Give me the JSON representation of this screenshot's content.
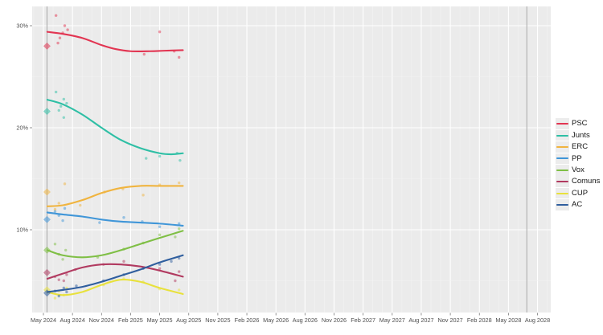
{
  "figure": {
    "background": "#ffffff",
    "panel_background": "#ebebeb",
    "major_grid_color": "#ffffff",
    "minor_grid_color": "#f3f3f3",
    "marker_line_color": "#a6a6a6",
    "axis_text_color": "#4d4d4d"
  },
  "chart_data": {
    "type": "scatter+line",
    "title": "",
    "xlabel": "",
    "ylabel": "",
    "x_unit": "months since May 2024",
    "x_tick_step_months": 3,
    "x_tick_labels": [
      "May 2024",
      "Aug 2024",
      "Nov 2024",
      "Feb 2025",
      "May 2025",
      "Aug 2025",
      "Nov 2025",
      "Feb 2026",
      "May 2026",
      "Aug 2026",
      "Nov 2026",
      "Feb 2027",
      "May 2027",
      "Aug 2027",
      "Nov 2027",
      "Feb 2028",
      "May 2028",
      "Aug 2028"
    ],
    "y_ticks": [
      {
        "label": "30%",
        "value": 30
      },
      {
        "label": "20%",
        "value": 20
      },
      {
        "label": "10%",
        "value": 10
      }
    ],
    "y_minor_ticks": [
      25,
      15,
      5
    ],
    "ylim": [
      1.9,
      31.9
    ],
    "xlim_months": [
      -1.2,
      52.4
    ],
    "election_line_month": 0.37,
    "term_end_line_month": 49.9,
    "legend_position": "right",
    "series": [
      {
        "name": "PSC",
        "color": "#e23552",
        "result": 28.0,
        "trend": [
          [
            0.4,
            29.4
          ],
          [
            2,
            29.2
          ],
          [
            4,
            28.8
          ],
          [
            6,
            28.1
          ],
          [
            7.5,
            27.7
          ],
          [
            9,
            27.5
          ],
          [
            11,
            27.5
          ],
          [
            12.5,
            27.55
          ],
          [
            14.4,
            27.6
          ]
        ],
        "polls": [
          [
            1.3,
            31.0
          ],
          [
            1.5,
            28.3
          ],
          [
            1.7,
            28.8
          ],
          [
            2.0,
            29.3
          ],
          [
            2.2,
            30.0
          ],
          [
            2.5,
            29.6
          ],
          [
            10.4,
            27.2
          ],
          [
            12.0,
            29.4
          ],
          [
            13.5,
            27.5
          ],
          [
            14.0,
            26.9
          ]
        ]
      },
      {
        "name": "Junts",
        "color": "#2ebfa5",
        "result": 21.6,
        "trend": [
          [
            0.4,
            22.75
          ],
          [
            2,
            22.3
          ],
          [
            4,
            21.3
          ],
          [
            6,
            20.0
          ],
          [
            8,
            18.8
          ],
          [
            10,
            18.0
          ],
          [
            12,
            17.5
          ],
          [
            13.2,
            17.4
          ],
          [
            14.4,
            17.5
          ]
        ],
        "polls": [
          [
            1.3,
            23.5
          ],
          [
            1.6,
            21.7
          ],
          [
            1.8,
            22.1
          ],
          [
            2.1,
            22.8
          ],
          [
            2.1,
            21.0
          ],
          [
            2.4,
            22.4
          ],
          [
            10.6,
            17.0
          ],
          [
            12.0,
            17.2
          ],
          [
            13.8,
            17.5
          ],
          [
            14.1,
            16.8
          ]
        ]
      },
      {
        "name": "ERC",
        "color": "#f0b43f",
        "result": 13.7,
        "trend": [
          [
            0.4,
            12.3
          ],
          [
            2,
            12.4
          ],
          [
            4,
            12.9
          ],
          [
            6,
            13.6
          ],
          [
            8,
            14.1
          ],
          [
            10,
            14.3
          ],
          [
            12,
            14.3
          ],
          [
            14.4,
            14.3
          ]
        ],
        "polls": [
          [
            1.2,
            12.0
          ],
          [
            1.6,
            12.6
          ],
          [
            2.2,
            14.5
          ],
          [
            3.8,
            12.4
          ],
          [
            6.3,
            13.7
          ],
          [
            8.2,
            14.0
          ],
          [
            10.3,
            13.4
          ],
          [
            12.0,
            14.4
          ],
          [
            14.0,
            14.6
          ]
        ]
      },
      {
        "name": "PP",
        "color": "#4096d8",
        "result": 11.0,
        "trend": [
          [
            0.4,
            11.7
          ],
          [
            2,
            11.5
          ],
          [
            4,
            11.3
          ],
          [
            6,
            11.0
          ],
          [
            8,
            10.8
          ],
          [
            10,
            10.7
          ],
          [
            12,
            10.6
          ],
          [
            14.4,
            10.4
          ]
        ],
        "polls": [
          [
            1.2,
            11.8
          ],
          [
            1.6,
            11.4
          ],
          [
            2.0,
            10.9
          ],
          [
            2.2,
            12.1
          ],
          [
            5.8,
            10.7
          ],
          [
            8.3,
            11.2
          ],
          [
            10.2,
            10.8
          ],
          [
            12.0,
            10.3
          ],
          [
            14.0,
            10.6
          ]
        ]
      },
      {
        "name": "Vox",
        "color": "#7fbf45",
        "result": 8.0,
        "trend": [
          [
            0.4,
            8.0
          ],
          [
            2,
            7.5
          ],
          [
            4,
            7.3
          ],
          [
            6,
            7.5
          ],
          [
            8,
            8.0
          ],
          [
            10,
            8.6
          ],
          [
            12,
            9.2
          ],
          [
            14.4,
            9.9
          ]
        ],
        "polls": [
          [
            1.2,
            8.6
          ],
          [
            1.6,
            7.6
          ],
          [
            2.0,
            7.1
          ],
          [
            2.3,
            8.0
          ],
          [
            5.6,
            7.3
          ],
          [
            8.3,
            8.1
          ],
          [
            10.3,
            8.7
          ],
          [
            12.0,
            9.5
          ],
          [
            13.6,
            9.3
          ],
          [
            14.0,
            10.1
          ]
        ]
      },
      {
        "name": "Comuns",
        "color": "#b13a60",
        "result": 5.8,
        "trend": [
          [
            0.4,
            5.2
          ],
          [
            2,
            5.7
          ],
          [
            4,
            6.3
          ],
          [
            6,
            6.6
          ],
          [
            8,
            6.6
          ],
          [
            10,
            6.4
          ],
          [
            12,
            6.0
          ],
          [
            14.4,
            5.4
          ]
        ],
        "polls": [
          [
            1.2,
            5.4
          ],
          [
            1.6,
            5.1
          ],
          [
            2.1,
            5.0
          ],
          [
            2.4,
            5.6
          ],
          [
            3.3,
            6.1
          ],
          [
            6.2,
            6.6
          ],
          [
            8.3,
            6.9
          ],
          [
            12.0,
            6.2
          ],
          [
            13.6,
            5.0
          ],
          [
            14.0,
            5.9
          ]
        ]
      },
      {
        "name": "CUP",
        "color": "#e8e13c",
        "result": 4.1,
        "trend": [
          [
            0.4,
            3.9
          ],
          [
            2,
            3.6
          ],
          [
            4,
            3.9
          ],
          [
            6,
            4.6
          ],
          [
            8,
            5.1
          ],
          [
            10,
            4.9
          ],
          [
            12,
            4.3
          ],
          [
            14.4,
            3.7
          ]
        ],
        "polls": [
          [
            1.2,
            3.3
          ],
          [
            1.6,
            4.0
          ],
          [
            2.1,
            3.6
          ],
          [
            2.4,
            4.3
          ],
          [
            6.2,
            4.6
          ],
          [
            8.3,
            5.2
          ],
          [
            10.3,
            4.9
          ],
          [
            12.0,
            4.2
          ],
          [
            14.0,
            4.1
          ]
        ]
      },
      {
        "name": "AC",
        "color": "#2f5e9e",
        "result": 3.8,
        "trend": [
          [
            0.4,
            3.9
          ],
          [
            2,
            4.1
          ],
          [
            4,
            4.4
          ],
          [
            6,
            4.9
          ],
          [
            8,
            5.5
          ],
          [
            10,
            6.1
          ],
          [
            12,
            6.8
          ],
          [
            14.4,
            7.5
          ]
        ],
        "polls": [
          [
            1.2,
            4.0
          ],
          [
            1.6,
            3.5
          ],
          [
            2.1,
            4.3
          ],
          [
            2.4,
            3.9
          ],
          [
            3.4,
            4.5
          ],
          [
            6.2,
            5.0
          ],
          [
            8.3,
            5.6
          ],
          [
            10.3,
            6.2
          ],
          [
            12.0,
            6.6
          ],
          [
            13.2,
            6.9
          ],
          [
            14.0,
            7.2
          ]
        ]
      }
    ]
  },
  "legend": {
    "entries": [
      "PSC",
      "Junts",
      "ERC",
      "PP",
      "Vox",
      "Comuns",
      "CUP",
      "AC"
    ]
  }
}
